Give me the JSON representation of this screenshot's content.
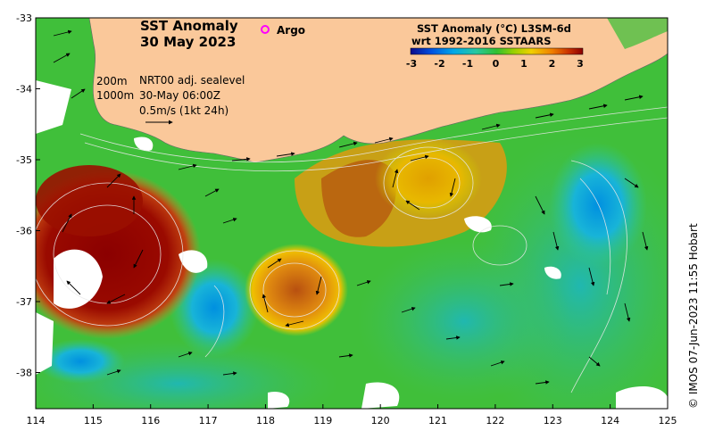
{
  "title": {
    "line1": "SST Anomaly",
    "line2": "30 May 2023"
  },
  "legend": {
    "argo_label": "Argo",
    "argo_color": "#ff00ff"
  },
  "colorbar": {
    "title_line1": "SST Anomaly (°C) L3SM-6d",
    "title_line2": "wrt 1992-2016 SSTAARS",
    "ticks": [
      "-3",
      "-2",
      "-1",
      "0",
      "1",
      "2",
      "3"
    ],
    "colors": [
      "#0b0b8c",
      "#0050e0",
      "#00a8e8",
      "#28c8a0",
      "#30c030",
      "#9ad000",
      "#f0d000",
      "#f08000",
      "#c83000",
      "#8b0000"
    ]
  },
  "info": {
    "contour_shallow": "200m",
    "contour_deep": "1000m",
    "product": "NRT00 adj. sealevel",
    "valid_time": "30-May 06:00Z",
    "vector_scale": "0.5m/s (1kt 24h)"
  },
  "axes": {
    "x_ticks": [
      "114",
      "115",
      "116",
      "117",
      "118",
      "119",
      "120",
      "121",
      "122",
      "123",
      "124",
      "125"
    ],
    "y_ticks": [
      "-33",
      "-34",
      "-35",
      "-36",
      "-37",
      "-38"
    ]
  },
  "credit": "© IMOS 07-Jun-2023 11:55 Hobart",
  "colors": {
    "land": "#fac89a",
    "ocean_base": "#40bf3a",
    "warm_core": "#8b0000",
    "warm_eddy": "#c86a10",
    "cool_water": "#18b4c8"
  }
}
